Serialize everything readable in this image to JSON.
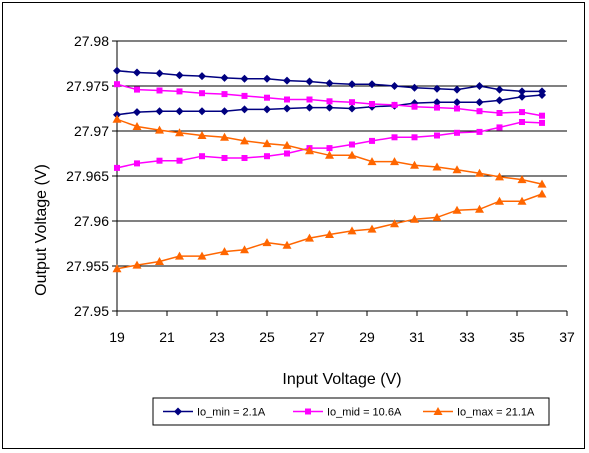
{
  "chart_data": {
    "type": "line",
    "title": "",
    "xlabel": "Input Voltage (V)",
    "ylabel": "Output Voltage (V)",
    "xlim": [
      19,
      37
    ],
    "ylim": [
      27.95,
      27.98
    ],
    "xticks": [
      "19",
      "21",
      "23",
      "25",
      "27",
      "29",
      "31",
      "33",
      "35",
      "37"
    ],
    "yticks": [
      "27.95",
      "27.955",
      "27.96",
      "27.965",
      "27.97",
      "27.975",
      "27.98"
    ],
    "grid": "horizontal",
    "legend_position": "bottom",
    "x": [
      19,
      19.8,
      20.7,
      21.5,
      22.4,
      23.3,
      24.1,
      25,
      25.8,
      26.7,
      27.5,
      28.4,
      29.2,
      30.1,
      30.9,
      31.8,
      32.6,
      33.5,
      34.3,
      35.2,
      36
    ],
    "series": [
      {
        "name": "Io_min = 2.1A",
        "color": "#000080",
        "marker": "diamond",
        "values": [
          27.9718,
          27.9721,
          27.9722,
          27.9722,
          27.9722,
          27.9722,
          27.9724,
          27.9724,
          27.9725,
          27.9726,
          27.9726,
          27.9725,
          27.9727,
          27.9728,
          27.9731,
          27.9732,
          27.9732,
          27.9732,
          27.9734,
          27.9738,
          27.974
        ]
      },
      {
        "name": "Io_min = 2.1A (upper)",
        "color": "#000080",
        "marker": "diamond",
        "values": [
          27.9767,
          27.9765,
          27.9764,
          27.9762,
          27.9761,
          27.9759,
          27.9758,
          27.9758,
          27.9756,
          27.9755,
          27.9753,
          27.9752,
          27.9752,
          27.975,
          27.9748,
          27.9747,
          27.9746,
          27.975,
          27.9746,
          27.9744,
          27.9744
        ]
      },
      {
        "name": "Io_mid = 10.6A",
        "color": "#ff00ff",
        "marker": "square",
        "values": [
          27.9659,
          27.9664,
          27.9667,
          27.9667,
          27.9672,
          27.967,
          27.967,
          27.9672,
          27.9675,
          27.9681,
          27.9681,
          27.9685,
          27.9689,
          27.9693,
          27.9693,
          27.9695,
          27.9698,
          27.9699,
          27.9704,
          27.971,
          27.9709
        ]
      },
      {
        "name": "Io_mid = 10.6A (upper)",
        "color": "#ff00ff",
        "marker": "square",
        "values": [
          27.9752,
          27.9746,
          27.9745,
          27.9744,
          27.9742,
          27.9741,
          27.9739,
          27.9737,
          27.9735,
          27.9735,
          27.9733,
          27.9732,
          27.973,
          27.9729,
          27.9727,
          27.9726,
          27.9725,
          27.9722,
          27.972,
          27.9721,
          27.9717
        ]
      },
      {
        "name": "Io_max = 21.1A",
        "color": "#ff6600",
        "marker": "triangle",
        "values": [
          27.9713,
          27.9705,
          27.9701,
          27.9698,
          27.9695,
          27.9693,
          27.9689,
          27.9686,
          27.9684,
          27.9678,
          27.9673,
          27.9673,
          27.9666,
          27.9666,
          27.9662,
          27.966,
          27.9657,
          27.9653,
          27.9649,
          27.9646,
          27.9641
        ]
      },
      {
        "name": "Io_max = 21.1A (lower)",
        "color": "#ff6600",
        "marker": "triangle",
        "values": [
          27.9547,
          27.9551,
          27.9555,
          27.9561,
          27.9561,
          27.9566,
          27.9568,
          27.9576,
          27.9573,
          27.9581,
          27.9585,
          27.9589,
          27.9591,
          27.9597,
          27.9602,
          27.9604,
          27.9612,
          27.9613,
          27.9622,
          27.9622,
          27.963
        ]
      }
    ],
    "legend": [
      {
        "label": "Io_min = 2.1A",
        "color": "#000080",
        "marker": "diamond"
      },
      {
        "label": "Io_mid = 10.6A",
        "color": "#ff00ff",
        "marker": "square"
      },
      {
        "label": "Io_max = 21.1A",
        "color": "#ff6600",
        "marker": "triangle"
      }
    ]
  }
}
